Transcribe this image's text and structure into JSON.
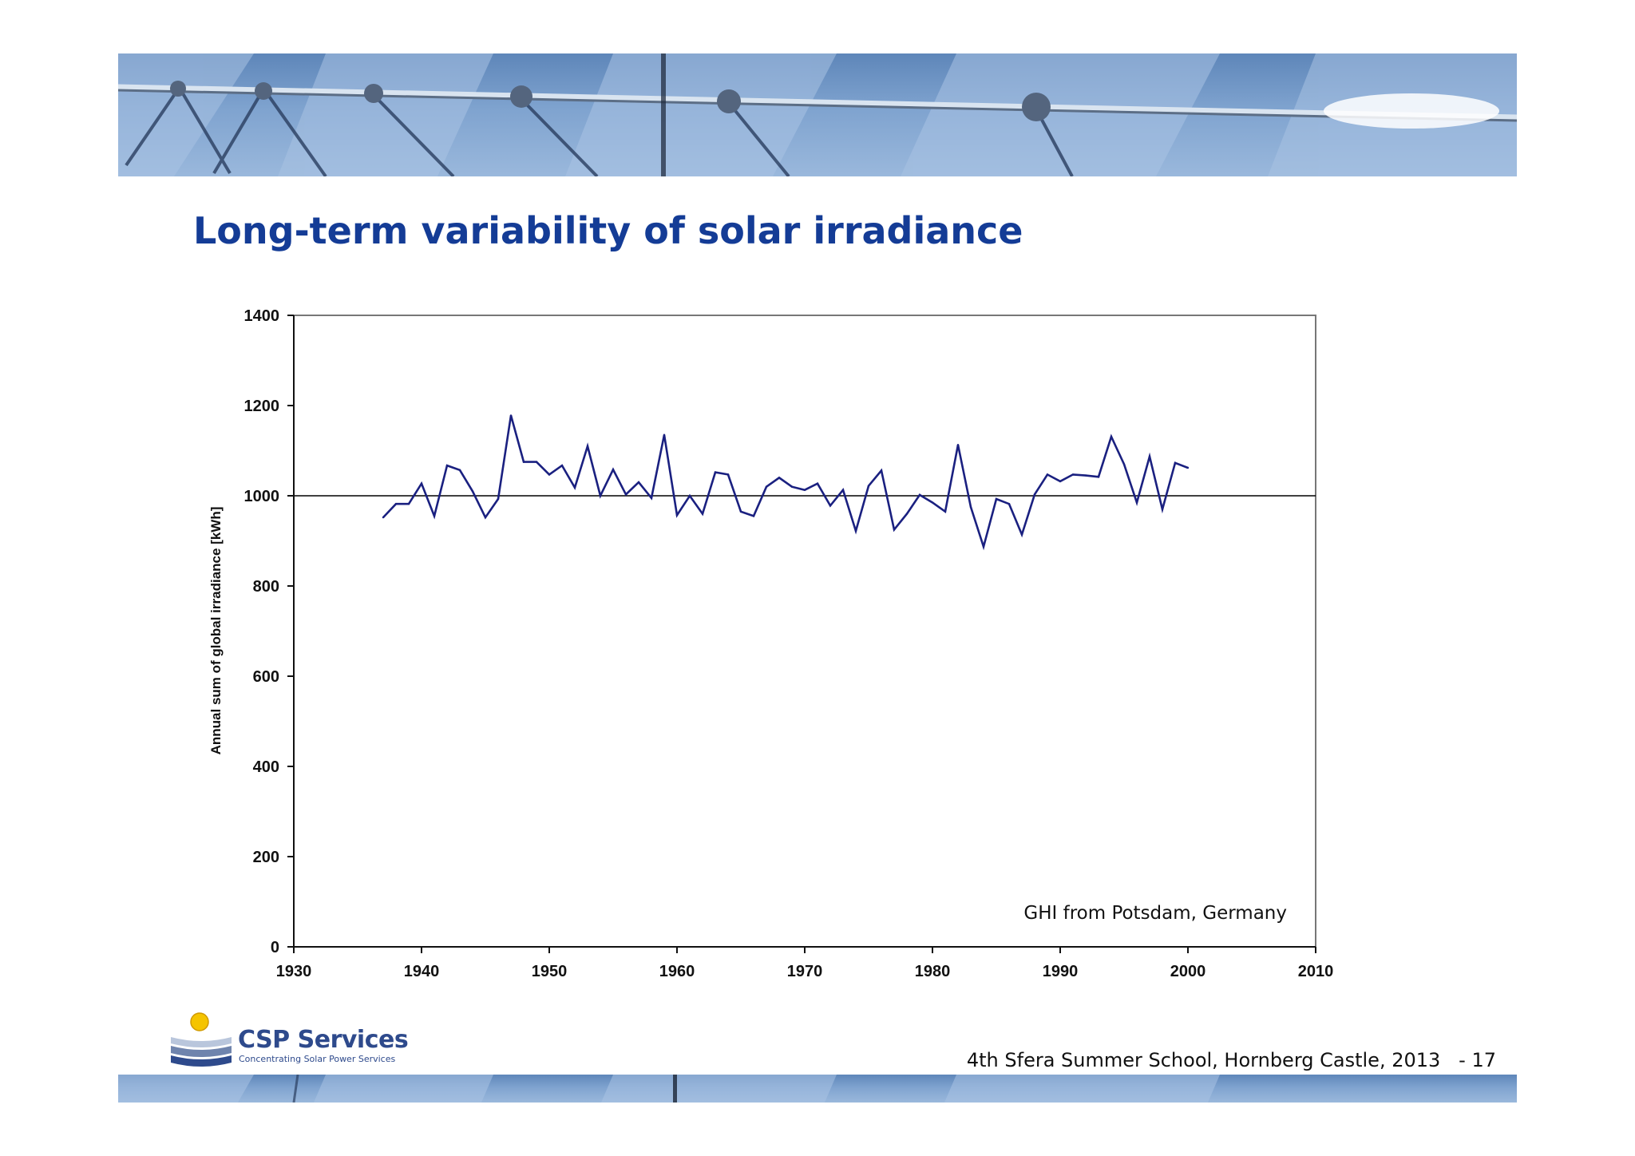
{
  "slide": {
    "title": "Long-term variability of solar irradiance"
  },
  "footer": {
    "event": "4th Sfera Summer School, Hornberg Castle, 2013",
    "page": "- 17"
  },
  "logo": {
    "name": "CSP Services",
    "tagline": "Concentrating Solar Power Services"
  },
  "colors": {
    "title": "#143c96",
    "series": "#1a2080",
    "reference_line": "#000000"
  },
  "chart_data": {
    "type": "line",
    "title": "",
    "xlabel": "",
    "ylabel": "Annual sum of global irradiance [kWh]",
    "xlim": [
      1930,
      2010
    ],
    "ylim": [
      0,
      1400
    ],
    "xticks": [
      1930,
      1940,
      1950,
      1960,
      1970,
      1980,
      1990,
      2000,
      2010
    ],
    "yticks": [
      0,
      200,
      400,
      600,
      800,
      1000,
      1200,
      1400
    ],
    "grid": false,
    "legend": "none",
    "annotation": "GHI from Potsdam,  Germany",
    "reference_lines": [
      {
        "axis": "y",
        "value": 1000
      }
    ],
    "series": [
      {
        "x": [
          1937,
          1938,
          1939,
          1940,
          1941,
          1942,
          1943,
          1944,
          1945,
          1946,
          1947,
          1948,
          1949,
          1950,
          1951,
          1952,
          1953,
          1954,
          1955,
          1956,
          1957,
          1958,
          1959,
          1960,
          1961,
          1962,
          1963,
          1964,
          1965,
          1966,
          1967,
          1968,
          1969,
          1970,
          1971,
          1972,
          1973,
          1974,
          1975,
          1976,
          1977,
          1978,
          1979,
          1980,
          1981,
          1982,
          1983,
          1984,
          1985,
          1986,
          1987,
          1988,
          1989,
          1990,
          1991,
          1992,
          1993,
          1994,
          1995,
          1996,
          1997,
          1998,
          1999,
          2000
        ],
        "values": [
          952,
          982,
          982,
          1027,
          955,
          1067,
          1057,
          1010,
          952,
          993,
          1178,
          1075,
          1075,
          1047,
          1067,
          1018,
          1110,
          1000,
          1058,
          1003,
          1030,
          995,
          1135,
          957,
          1000,
          960,
          1052,
          1047,
          965,
          955,
          1020,
          1040,
          1020,
          1013,
          1027,
          978,
          1013,
          922,
          1022,
          1056,
          925,
          960,
          1002,
          985,
          965,
          1113,
          975,
          887,
          993,
          982,
          914,
          1003,
          1047,
          1032,
          1047,
          1045,
          1042,
          1131,
          1070,
          985,
          1087,
          970,
          1073,
          1062
        ]
      }
    ]
  }
}
